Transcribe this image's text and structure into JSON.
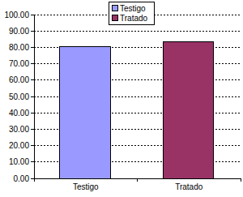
{
  "chart_data": {
    "type": "bar",
    "categories": [
      "Testigo",
      "Tratado"
    ],
    "values": [
      80.3,
      83.4
    ],
    "colors": [
      "#9999ff",
      "#993366"
    ],
    "ylim": [
      0,
      100
    ],
    "yticks": [
      {
        "value": 0,
        "label": "0.00"
      },
      {
        "value": 10,
        "label": "10.00"
      },
      {
        "value": 20,
        "label": "20.00"
      },
      {
        "value": 30,
        "label": "30.00"
      },
      {
        "value": 40,
        "label": "40.00"
      },
      {
        "value": 50,
        "label": "50.00"
      },
      {
        "value": 60,
        "label": "60.00"
      },
      {
        "value": 70,
        "label": "70.00"
      },
      {
        "value": 80,
        "label": "80.00"
      },
      {
        "value": 90,
        "label": "90.00"
      },
      {
        "value": 100,
        "label": "100.00"
      }
    ],
    "grid": true,
    "legend": "top"
  }
}
